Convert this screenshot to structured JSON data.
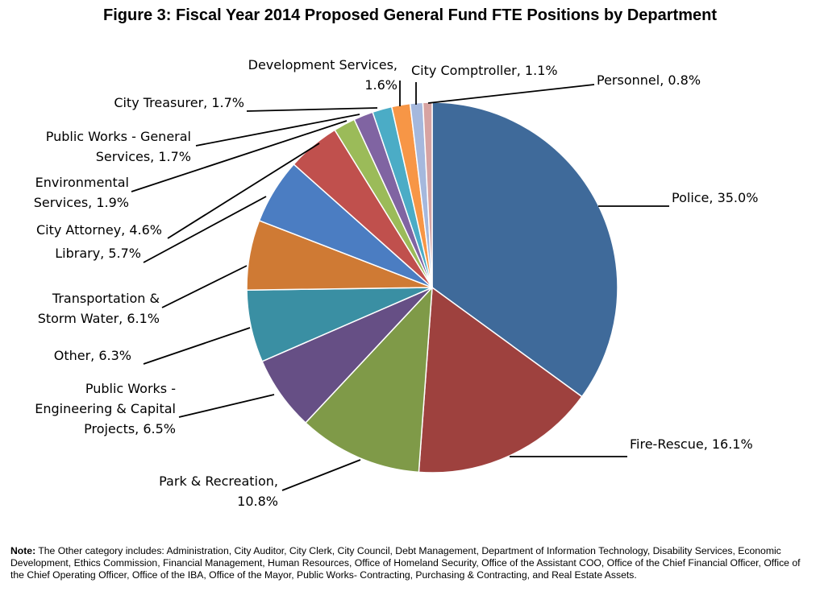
{
  "chart_data": {
    "type": "pie",
    "title": "Figure 3: Fiscal Year 2014 Proposed General Fund FTE Positions by Department",
    "unit": "%",
    "slices": [
      {
        "name": "Police",
        "value": 35.0,
        "color": "#3F6A9A",
        "label_lines": [
          "Police, 35.0%"
        ]
      },
      {
        "name": "Fire-Rescue",
        "value": 16.1,
        "color": "#9E413E",
        "label_lines": [
          "Fire-Rescue, 16.1%"
        ]
      },
      {
        "name": "Park & Recreation",
        "value": 10.8,
        "color": "#7F9A48",
        "label_lines": [
          "Park & Recreation,",
          "10.8%"
        ]
      },
      {
        "name": "Public Works - Engineering & Capital Projects",
        "value": 6.5,
        "color": "#664F85",
        "label_lines": [
          "Public Works -",
          "Engineering & Capital",
          "Projects, 6.5%"
        ]
      },
      {
        "name": "Other",
        "value": 6.3,
        "color": "#3A8FA3",
        "label_lines": [
          "Other, 6.3%"
        ]
      },
      {
        "name": "Transportation & Storm Water",
        "value": 6.1,
        "color": "#CF7A34",
        "label_lines": [
          "Transportation &",
          "Storm Water, 6.1%"
        ]
      },
      {
        "name": "Library",
        "value": 5.7,
        "color": "#4B7DC2",
        "label_lines": [
          "Library, 5.7%"
        ]
      },
      {
        "name": "City Attorney",
        "value": 4.6,
        "color": "#C0504D",
        "label_lines": [
          "City Attorney, 4.6%"
        ]
      },
      {
        "name": "Environmental Services",
        "value": 1.9,
        "color": "#9BBB59",
        "label_lines": [
          "Environmental",
          "Services, 1.9%"
        ]
      },
      {
        "name": "Public Works - General Services",
        "value": 1.7,
        "color": "#8064A2",
        "label_lines": [
          "Public Works - General",
          "Services, 1.7%"
        ]
      },
      {
        "name": "City Treasurer",
        "value": 1.7,
        "color": "#4BACC6",
        "label_lines": [
          "City Treasurer, 1.7%"
        ]
      },
      {
        "name": "Development Services",
        "value": 1.6,
        "color": "#F79646",
        "label_lines": [
          "Development Services,",
          "1.6%"
        ]
      },
      {
        "name": "City Comptroller",
        "value": 1.1,
        "color": "#A5B8DD",
        "label_lines": [
          "City Comptroller, 1.1%"
        ]
      },
      {
        "name": "Personnel",
        "value": 0.8,
        "color": "#D7A3A2",
        "label_lines": [
          "Personnel, 0.8%"
        ]
      }
    ]
  },
  "note": {
    "label": "Note:",
    "text": " The Other category includes: Administration, City Auditor, City Clerk, City Council, Debt Management, Department of Information Technology, Disability Services, Economic Development, Ethics Commission, Financial Management, Human Resources, Office of Homeland Security, Office of the Assistant COO, Office of the Chief Financial Officer, Office of the Chief Operating Officer, Office of the IBA, Office of the Mayor, Public Works- Contracting, Purchasing & Contracting, and Real Estate Assets."
  }
}
